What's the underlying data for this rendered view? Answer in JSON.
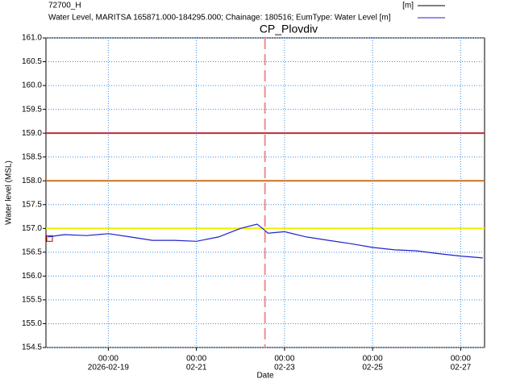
{
  "chart_data": {
    "type": "line",
    "title": "CP_Plovdiv",
    "y_label": "Water level (MSL)",
    "x_label": "Date",
    "xlim": [
      "2026-02-17T14:00",
      "2026-02-27T13:00"
    ],
    "xticks": [
      {
        "value": "2026-02-19T00:00",
        "label": [
          "00:00",
          "2026-02-19"
        ]
      },
      {
        "value": "2026-02-21T00:00",
        "label": [
          "00:00",
          "02-21"
        ]
      },
      {
        "value": "2026-02-23T00:00",
        "label": [
          "00:00",
          "02-23"
        ]
      },
      {
        "value": "2026-02-25T00:00",
        "label": [
          "00:00",
          "02-25"
        ]
      },
      {
        "value": "2026-02-27T00:00",
        "label": [
          "00:00",
          "02-27"
        ]
      }
    ],
    "ylim": [
      154.5,
      161.0
    ],
    "yticks": [
      154.5,
      {
        "value": 155,
        "label": "155.0"
      },
      155.5,
      {
        "value": 156,
        "label": "156.0"
      },
      156.5,
      {
        "value": 157,
        "label": "157.0"
      },
      157.5,
      {
        "value": 158,
        "label": "158.0"
      },
      158.5,
      {
        "value": 159,
        "label": "159.0"
      },
      159.5,
      {
        "value": 160,
        "label": "160.0"
      },
      160.5,
      {
        "value": 161,
        "label": "161.0"
      }
    ],
    "grid": true,
    "hlines": [
      {
        "value": 159.0,
        "color": "#c0283c"
      },
      {
        "value": 158.0,
        "color": "#d0701c"
      },
      {
        "value": 157.0,
        "color": "#f0f000"
      }
    ],
    "vlines": [
      {
        "value": "2026-02-22T13:20",
        "color": "#f08c8c"
      }
    ],
    "series": [
      {
        "name": "72700_H",
        "unit": "[m]",
        "color": "#000000",
        "marker_color": "#c00000",
        "x": [
          "2026-02-17T14:00"
        ],
        "values": [
          156.78
        ]
      },
      {
        "name": "Water Level, MARITSA 165871.000-184295.000; Chainage: 180516; EumType: Water Level [m]",
        "color": "#2020d0",
        "x": [
          "2026-02-17T15:00",
          "2026-02-18T00:00",
          "2026-02-18T12:00",
          "2026-02-19T00:00",
          "2026-02-19T12:00",
          "2026-02-20T00:00",
          "2026-02-20T12:00",
          "2026-02-21T00:00",
          "2026-02-21T12:00",
          "2026-02-22T00:00",
          "2026-02-22T09:00",
          "2026-02-22T12:00",
          "2026-02-22T15:00",
          "2026-02-23T00:00",
          "2026-02-23T12:00",
          "2026-02-24T00:00",
          "2026-02-24T12:00",
          "2026-02-25T00:00",
          "2026-02-25T12:00",
          "2026-02-26T00:00",
          "2026-02-26T12:00",
          "2026-02-27T00:00",
          "2026-02-27T12:00"
        ],
        "values": [
          156.82,
          156.87,
          156.85,
          156.89,
          156.82,
          156.75,
          156.75,
          156.73,
          156.82,
          157.0,
          157.09,
          157.0,
          156.9,
          156.93,
          156.82,
          156.75,
          156.68,
          156.6,
          156.55,
          156.53,
          156.47,
          156.42,
          156.38
        ]
      }
    ]
  }
}
